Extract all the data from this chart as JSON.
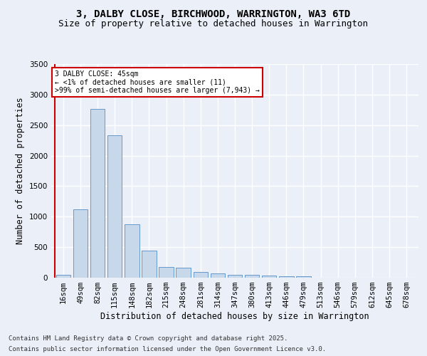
{
  "title_line1": "3, DALBY CLOSE, BIRCHWOOD, WARRINGTON, WA3 6TD",
  "title_line2": "Size of property relative to detached houses in Warrington",
  "xlabel": "Distribution of detached houses by size in Warrington",
  "ylabel": "Number of detached properties",
  "bar_color": "#c8d8eb",
  "bar_edge_color": "#6699cc",
  "categories": [
    "16sqm",
    "49sqm",
    "82sqm",
    "115sqm",
    "148sqm",
    "182sqm",
    "215sqm",
    "248sqm",
    "281sqm",
    "314sqm",
    "347sqm",
    "380sqm",
    "413sqm",
    "446sqm",
    "479sqm",
    "513sqm",
    "546sqm",
    "579sqm",
    "612sqm",
    "645sqm",
    "678sqm"
  ],
  "values": [
    50,
    1120,
    2760,
    2330,
    880,
    440,
    175,
    165,
    90,
    65,
    45,
    45,
    30,
    20,
    20,
    5,
    5,
    0,
    0,
    0,
    0
  ],
  "ylim": [
    0,
    3500
  ],
  "yticks": [
    0,
    500,
    1000,
    1500,
    2000,
    2500,
    3000,
    3500
  ],
  "marker_color": "#cc0000",
  "annotation_text": "3 DALBY CLOSE: 45sqm\n← <1% of detached houses are smaller (11)\n>99% of semi-detached houses are larger (7,943) →",
  "annotation_box_color": "#ffffff",
  "annotation_box_edge": "#cc0000",
  "footer_line1": "Contains HM Land Registry data © Crown copyright and database right 2025.",
  "footer_line2": "Contains public sector information licensed under the Open Government Licence v3.0.",
  "background_color": "#eaeff8",
  "plot_bg_color": "#eaeff8",
  "grid_color": "#ffffff",
  "title_fontsize": 10,
  "subtitle_fontsize": 9,
  "axis_label_fontsize": 8.5,
  "tick_fontsize": 7.5,
  "footer_fontsize": 6.5
}
